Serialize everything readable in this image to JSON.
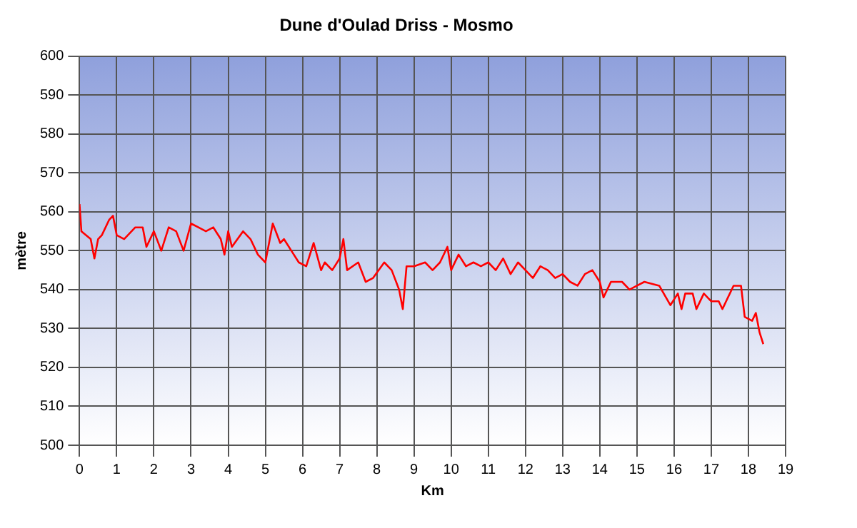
{
  "chart_data": {
    "type": "line",
    "title": "Dune d'Oulad Driss - Mosmo",
    "xlabel": "Km",
    "ylabel": "mètre",
    "xlim": [
      0,
      19
    ],
    "xticks": [
      0,
      1,
      2,
      3,
      4,
      5,
      6,
      7,
      8,
      9,
      10,
      11,
      12,
      13,
      14,
      15,
      16,
      17,
      18,
      19
    ],
    "ylim": [
      500,
      600
    ],
    "yticks": [
      500,
      510,
      520,
      530,
      540,
      550,
      560,
      570,
      580,
      590,
      600
    ],
    "grid": true,
    "legend": false,
    "marker": "none",
    "line_style": "solid",
    "series": [
      {
        "color": "#ff0000",
        "x": [
          0,
          0.05,
          0.3,
          0.4,
          0.5,
          0.6,
          0.8,
          0.9,
          1.0,
          1.2,
          1.5,
          1.7,
          1.8,
          2.0,
          2.2,
          2.4,
          2.6,
          2.8,
          3.0,
          3.2,
          3.4,
          3.6,
          3.8,
          3.9,
          4.0,
          4.1,
          4.4,
          4.6,
          4.8,
          5.0,
          5.2,
          5.4,
          5.5,
          5.7,
          5.9,
          6.1,
          6.3,
          6.5,
          6.6,
          6.8,
          7.0,
          7.1,
          7.2,
          7.5,
          7.7,
          7.9,
          8.2,
          8.4,
          8.6,
          8.7,
          8.8,
          9.0,
          9.3,
          9.5,
          9.7,
          9.9,
          10.0,
          10.2,
          10.4,
          10.6,
          10.8,
          11.0,
          11.2,
          11.4,
          11.6,
          11.8,
          12.0,
          12.2,
          12.4,
          12.6,
          12.8,
          13.0,
          13.2,
          13.4,
          13.6,
          13.8,
          14.0,
          14.1,
          14.3,
          14.6,
          14.8,
          15.0,
          15.2,
          15.6,
          15.9,
          16.1,
          16.2,
          16.3,
          16.5,
          16.6,
          16.8,
          17.0,
          17.2,
          17.3,
          17.6,
          17.8,
          17.9,
          18.1,
          18.2,
          18.3,
          18.4
        ],
        "values": [
          562,
          555,
          553,
          548,
          553,
          554,
          558,
          559,
          554,
          553,
          556,
          556,
          551,
          555,
          550,
          556,
          555,
          550,
          557,
          556,
          555,
          556,
          553,
          549,
          555,
          551,
          555,
          553,
          549,
          547,
          557,
          552,
          553,
          550,
          547,
          546,
          552,
          545,
          547,
          545,
          548,
          553,
          545,
          547,
          542,
          543,
          547,
          545,
          540,
          535,
          546,
          546,
          547,
          545,
          547,
          551,
          545,
          549,
          546,
          547,
          546,
          547,
          545,
          548,
          544,
          547,
          545,
          543,
          546,
          545,
          543,
          544,
          542,
          541,
          544,
          545,
          542,
          538,
          542,
          542,
          540,
          541,
          542,
          541,
          536,
          539,
          535,
          539,
          539,
          535,
          539,
          537,
          537,
          535,
          541,
          541,
          533,
          532,
          534,
          529,
          526
        ]
      }
    ]
  }
}
